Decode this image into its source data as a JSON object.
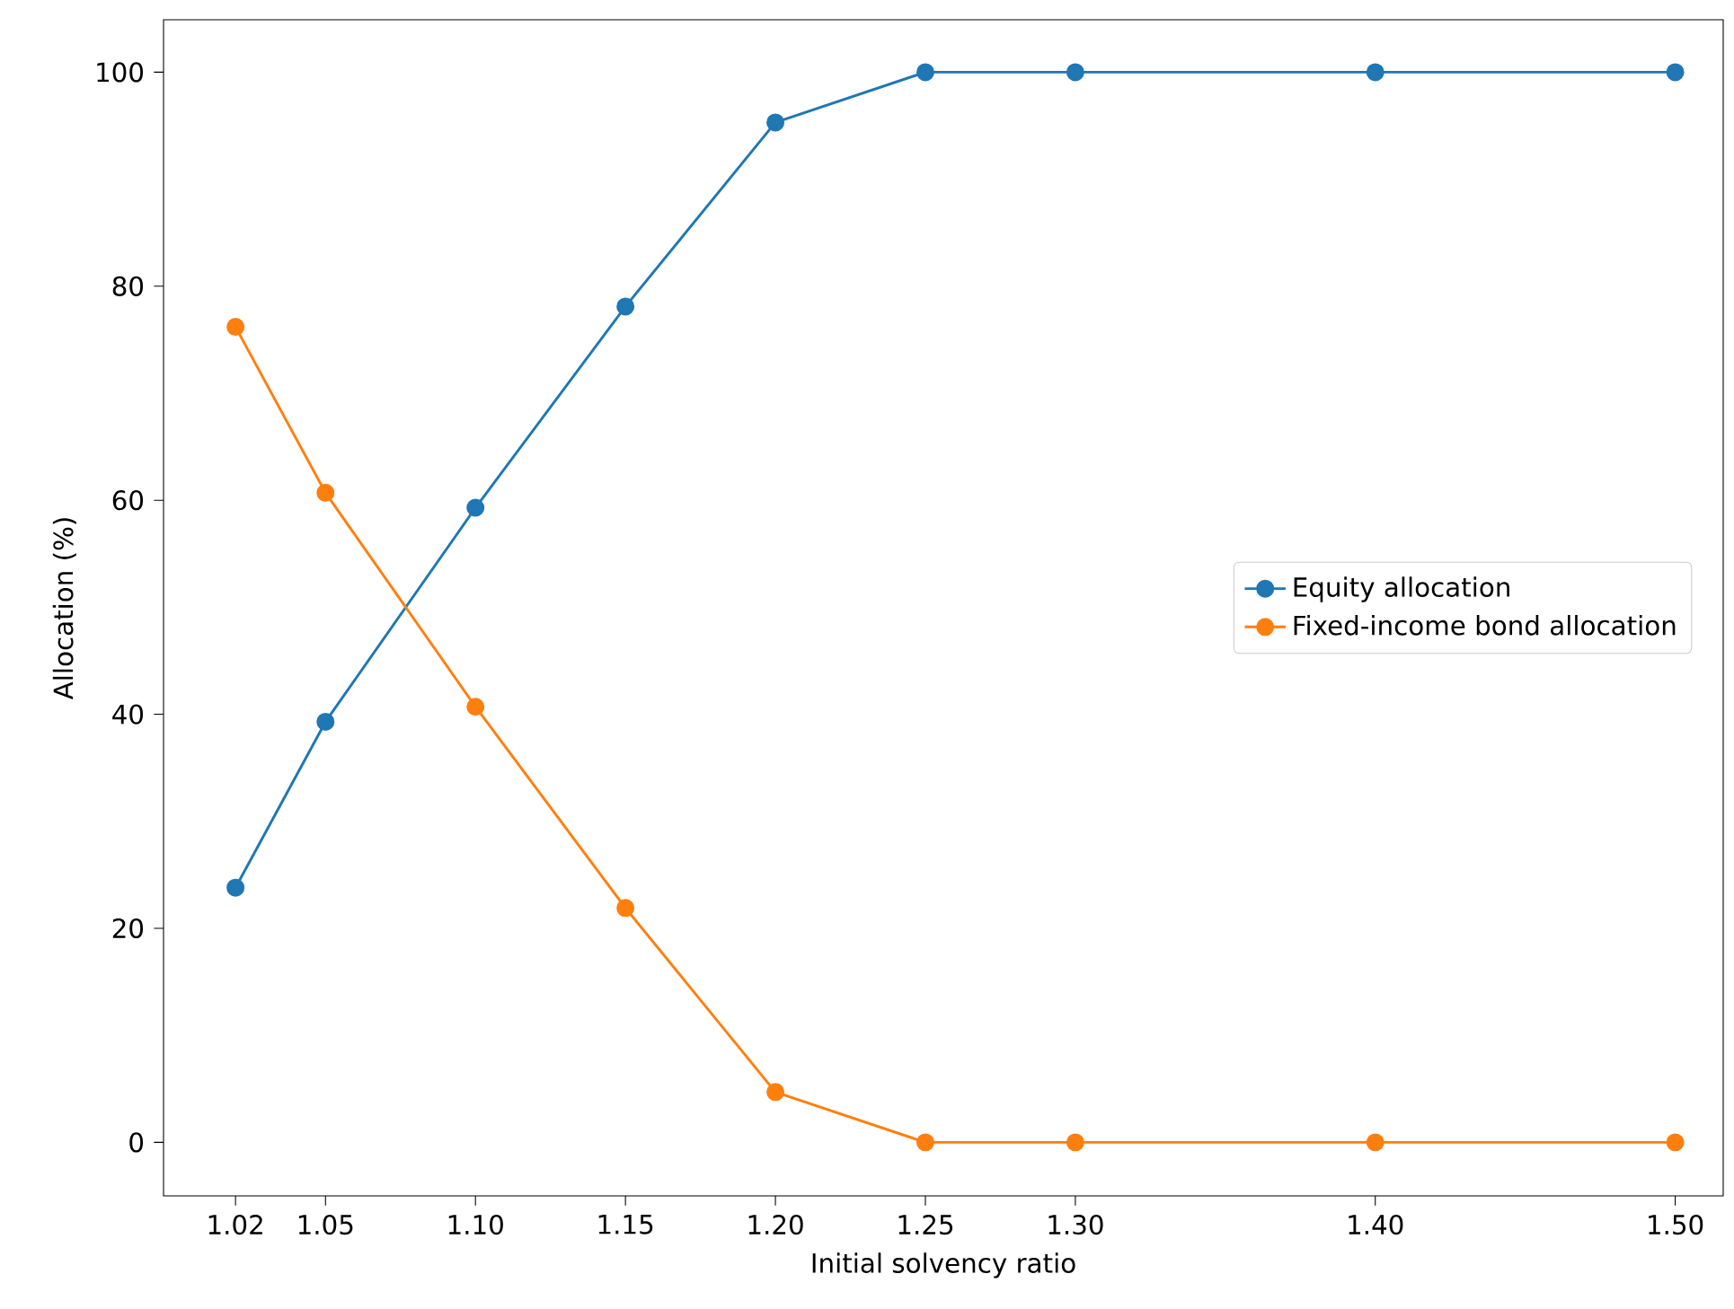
{
  "chart_data": {
    "type": "line",
    "xlabel": "Initial solvency ratio",
    "ylabel": "Allocation (%)",
    "x": [
      1.02,
      1.05,
      1.1,
      1.15,
      1.2,
      1.25,
      1.3,
      1.4,
      1.5
    ],
    "series": [
      {
        "name": "Equity allocation",
        "color": "#1f77b4",
        "values": [
          23.8,
          39.3,
          59.3,
          78.1,
          95.3,
          100,
          100,
          100,
          100
        ]
      },
      {
        "name": "Fixed-income bond allocation",
        "color": "#ff7f0e",
        "values": [
          76.2,
          60.7,
          40.7,
          21.9,
          4.7,
          0,
          0,
          0,
          0
        ]
      }
    ],
    "xlim": [
      0.996,
      1.516
    ],
    "ylim": [
      -5,
      104.9
    ],
    "xticks": [
      {
        "value": 1.02,
        "label": "1.02"
      },
      {
        "value": 1.05,
        "label": "1.05"
      },
      {
        "value": 1.1,
        "label": "1.10"
      },
      {
        "value": 1.15,
        "label": "1.15"
      },
      {
        "value": 1.2,
        "label": "1.20"
      },
      {
        "value": 1.25,
        "label": "1.25"
      },
      {
        "value": 1.3,
        "label": "1.30"
      },
      {
        "value": 1.4,
        "label": "1.40"
      },
      {
        "value": 1.5,
        "label": "1.50"
      }
    ],
    "yticks": [
      0,
      20,
      40,
      60,
      80,
      100
    ],
    "legend": "right",
    "marker": "circle",
    "line_style": "solid",
    "grid": false
  }
}
